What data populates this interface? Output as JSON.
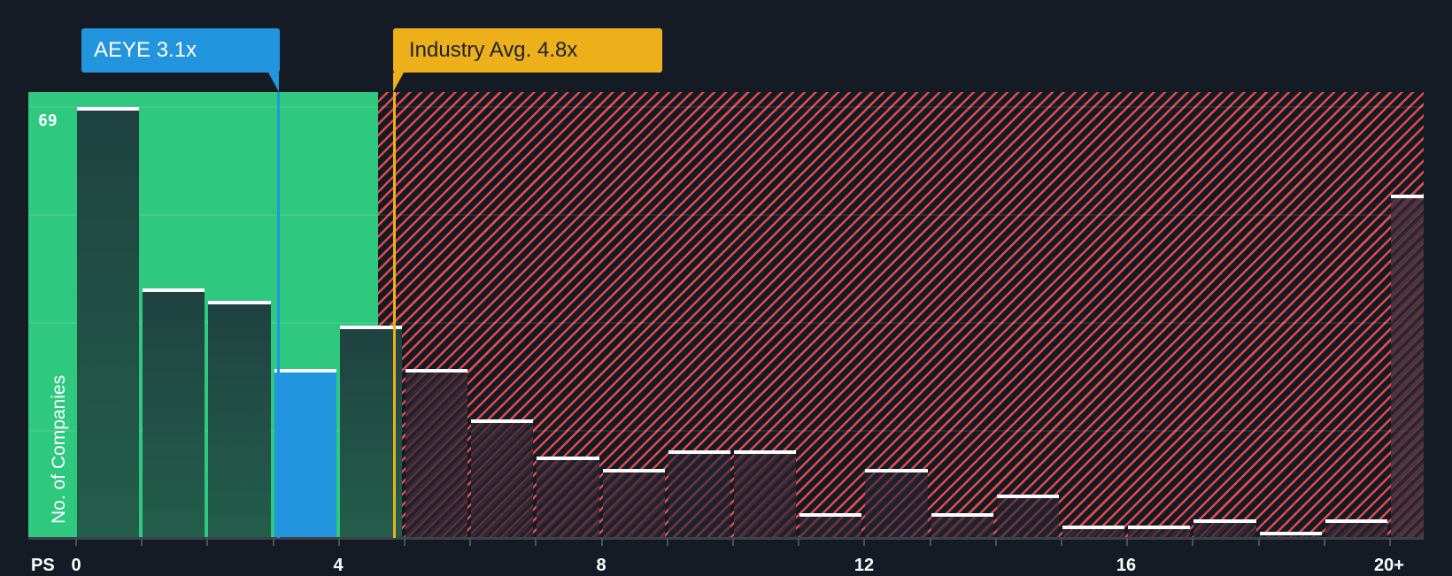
{
  "chart_data": {
    "type": "bar",
    "title": "",
    "xlabel": "PS",
    "ylabel": "No. of Companies",
    "x_tick_labels": [
      "0",
      "4",
      "8",
      "12",
      "16",
      "20+"
    ],
    "y_max_label": "69",
    "ylim": [
      0,
      69
    ],
    "bin_width": 1,
    "categories": [
      "0-1",
      "1-2",
      "2-3",
      "3-4",
      "4-5",
      "5-6",
      "6-7",
      "7-8",
      "8-9",
      "9-10",
      "10-11",
      "11-12",
      "12-13",
      "13-14",
      "14-15",
      "15-16",
      "16-17",
      "17-18",
      "18-19",
      "19-20",
      "20+"
    ],
    "values": [
      69,
      40,
      38,
      27,
      34,
      27,
      19,
      13,
      11,
      14,
      14,
      4,
      11,
      4,
      7,
      2,
      2,
      3,
      1,
      3,
      55
    ],
    "subject_bin_index": 3,
    "fair_zone_upper": 4.6,
    "annotations": [
      {
        "label": "AEYE 3.1x",
        "value": 3.1,
        "color": "#2394de"
      },
      {
        "label": "Industry Avg. 4.8x",
        "value": 4.8,
        "color": "#edb01a"
      }
    ],
    "colors": {
      "background": "#151b24",
      "undervalued_zone": "#2ec97f",
      "overvalued_hatch": "#e14b4b",
      "subject_bar": "#2394de",
      "industry_line": "#edb01a"
    },
    "grid": true,
    "legend": "none"
  },
  "labels": {
    "subject_callout": "AEYE 3.1x",
    "industry_callout": "Industry Avg. 4.8x",
    "y_top_value": "69",
    "y_axis_title": "No. of Companies",
    "x_axis_title": "PS",
    "ticks": [
      "0",
      "4",
      "8",
      "12",
      "16",
      "20+"
    ]
  }
}
